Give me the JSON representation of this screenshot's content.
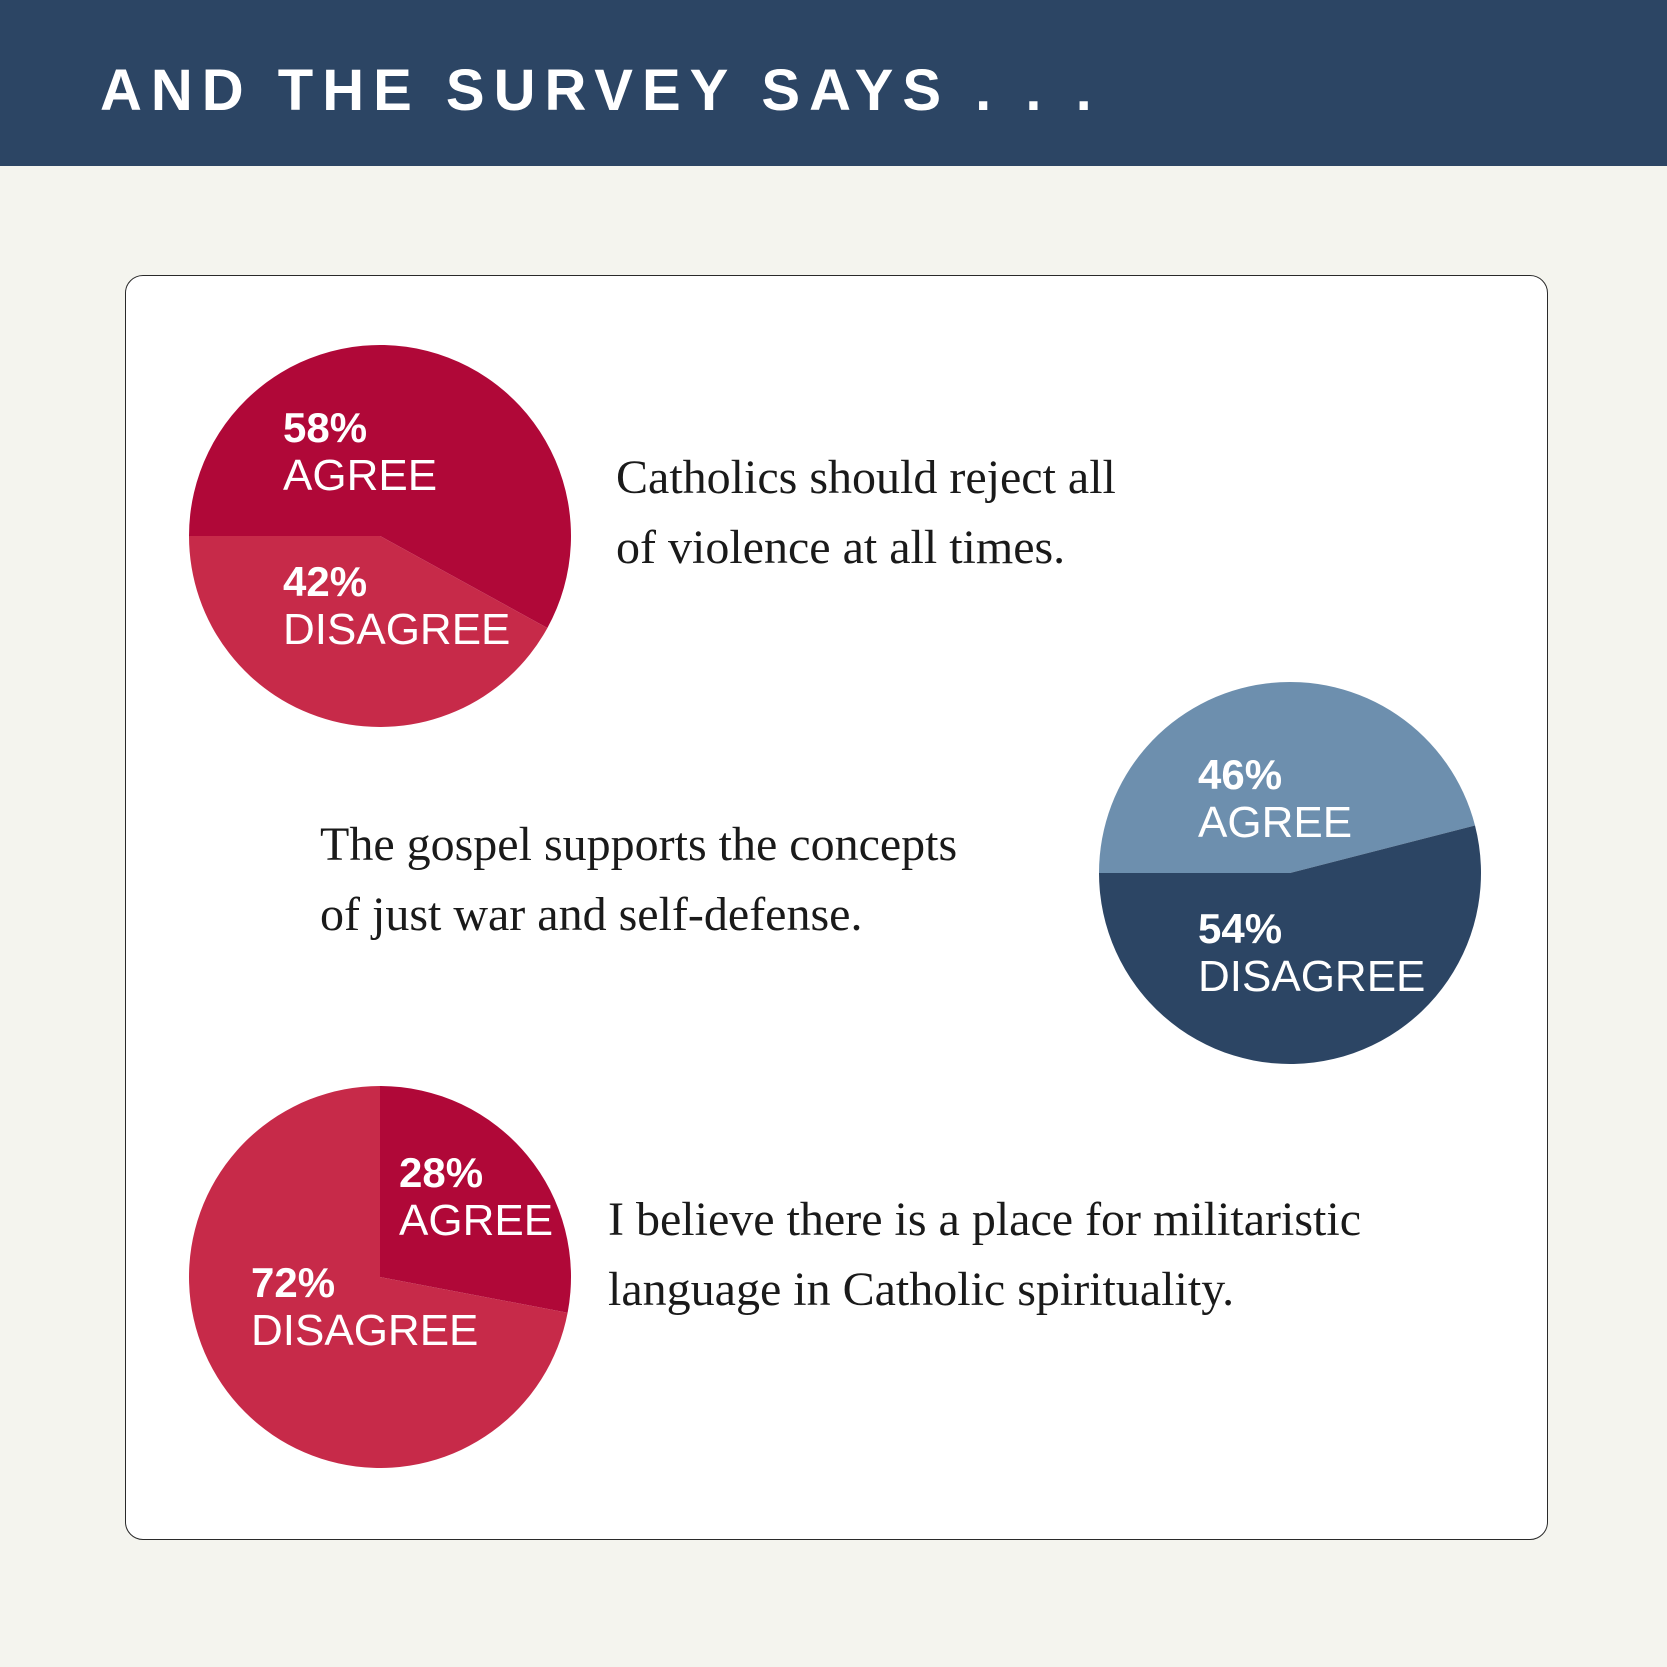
{
  "header": {
    "title": "AND THE SURVEY SAYS . . ."
  },
  "colors": {
    "header_bg": "#2c4564",
    "red_dark": "#b00838",
    "red_light": "#c72a49",
    "blue_light": "#6d8fae",
    "blue_dark": "#2c4564"
  },
  "chart_data": [
    {
      "type": "pie",
      "title": "",
      "statement_lines": [
        "Catholics should reject all",
        "of violence at all times."
      ],
      "slices": [
        {
          "pct_label": "58%",
          "label": "AGREE",
          "value": 58,
          "color": "#b00838"
        },
        {
          "pct_label": "42%",
          "label": "DISAGREE",
          "value": 42,
          "color": "#c72a49"
        }
      ]
    },
    {
      "type": "pie",
      "title": "",
      "statement_lines": [
        "The gospel supports the concepts",
        "of just war and self-defense."
      ],
      "slices": [
        {
          "pct_label": "46%",
          "label": "AGREE",
          "value": 46,
          "color": "#6d8fae"
        },
        {
          "pct_label": "54%",
          "label": "DISAGREE",
          "value": 54,
          "color": "#2c4564"
        }
      ]
    },
    {
      "type": "pie",
      "title": "",
      "statement_lines": [
        "I believe there is a place for militaristic",
        "language in Catholic spirituality."
      ],
      "slices": [
        {
          "pct_label": "28%",
          "label": "AGREE",
          "value": 28,
          "color": "#b00838"
        },
        {
          "pct_label": "72%",
          "label": "DISAGREE",
          "value": 72,
          "color": "#c72a49"
        }
      ]
    }
  ]
}
